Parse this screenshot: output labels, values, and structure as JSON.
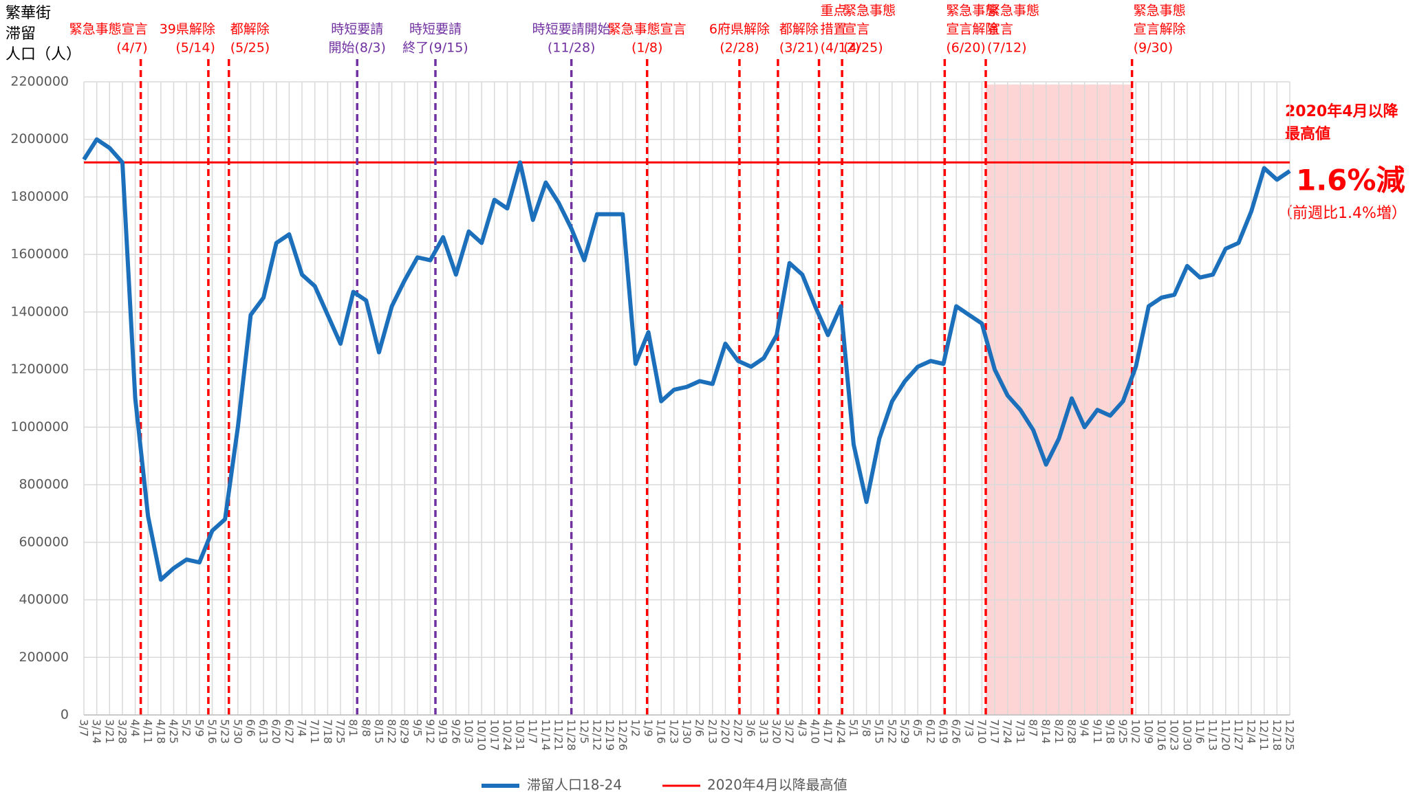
{
  "chart_data": {
    "type": "line",
    "y_axis_label": [
      "繁華街",
      "滞留",
      "人口（人）"
    ],
    "categories": [
      "3/7",
      "3/14",
      "3/21",
      "3/28",
      "4/4",
      "4/11",
      "4/18",
      "4/25",
      "5/2",
      "5/9",
      "5/16",
      "5/23",
      "5/30",
      "6/6",
      "6/13",
      "6/20",
      "6/27",
      "7/4",
      "7/11",
      "7/18",
      "7/25",
      "8/1",
      "8/8",
      "8/15",
      "8/22",
      "8/29",
      "9/5",
      "9/12",
      "9/19",
      "9/26",
      "10/3",
      "10/10",
      "10/17",
      "10/24",
      "10/31",
      "11/7",
      "11/14",
      "11/21",
      "11/28",
      "12/5",
      "12/12",
      "12/19",
      "12/26",
      "1/2",
      "1/9",
      "1/16",
      "1/23",
      "1/30",
      "2/6",
      "2/13",
      "2/20",
      "2/27",
      "3/6",
      "3/13",
      "3/20",
      "3/27",
      "4/3",
      "4/10",
      "4/17",
      "4/24",
      "5/1",
      "5/8",
      "5/15",
      "5/22",
      "5/29",
      "6/5",
      "6/12",
      "6/19",
      "6/26",
      "7/3",
      "7/10",
      "7/17",
      "7/24",
      "7/31",
      "8/7",
      "8/14",
      "8/21",
      "8/28",
      "9/4",
      "9/11",
      "9/18",
      "9/25",
      "10/2",
      "10/9",
      "10/16",
      "10/23",
      "10/30",
      "11/6",
      "11/13",
      "11/20",
      "11/27",
      "12/4",
      "12/11",
      "12/18",
      "12/25"
    ],
    "series": [
      {
        "name": "滞留人口18-24",
        "color": "#1b6fbb",
        "values": [
          1930000,
          2000000,
          1970000,
          1920000,
          1100000,
          690000,
          470000,
          510000,
          540000,
          530000,
          640000,
          680000,
          1000000,
          1390000,
          1450000,
          1640000,
          1670000,
          1530000,
          1490000,
          1390000,
          1290000,
          1470000,
          1440000,
          1260000,
          1420000,
          1510000,
          1590000,
          1580000,
          1660000,
          1530000,
          1680000,
          1640000,
          1790000,
          1760000,
          1920000,
          1720000,
          1850000,
          1780000,
          1690000,
          1580000,
          1740000,
          1740000,
          1740000,
          1220000,
          1330000,
          1090000,
          1130000,
          1140000,
          1160000,
          1150000,
          1290000,
          1230000,
          1210000,
          1240000,
          1320000,
          1570000,
          1530000,
          1420000,
          1320000,
          1420000,
          940000,
          740000,
          960000,
          1090000,
          1160000,
          1210000,
          1230000,
          1220000,
          1420000,
          1390000,
          1360000,
          1200000,
          1110000,
          1060000,
          990000,
          870000,
          960000,
          1100000,
          1000000,
          1060000,
          1040000,
          1090000,
          1210000,
          1420000,
          1450000,
          1460000,
          1560000,
          1520000,
          1530000,
          1620000,
          1640000,
          1750000,
          1900000,
          1860000,
          1890000
        ]
      }
    ],
    "reference": {
      "name": "2020年4月以降最高値",
      "value": 1920000,
      "color": "#ff0000"
    },
    "ylim": [
      0,
      2200000
    ],
    "yticks": [
      0,
      200000,
      400000,
      600000,
      800000,
      1000000,
      1200000,
      1400000,
      1600000,
      1800000,
      2000000,
      2200000
    ],
    "grid": true,
    "events": [
      {
        "lines": [
          "緊急事態宣言",
          "(4/7)"
        ],
        "x": 4.43,
        "color": "#ff0000",
        "anchor": "end"
      },
      {
        "lines": [
          "39県解除",
          "(5/14)"
        ],
        "x": 9.7,
        "color": "#ff0000",
        "anchor": "end"
      },
      {
        "lines": [
          "都解除",
          "(5/25)"
        ],
        "x": 11.3,
        "color": "#ff0000",
        "anchor": "start"
      },
      {
        "lines": [
          "時短要請",
          "開始(8/3)"
        ],
        "x": 21.3,
        "color": "#7030a0",
        "anchor": "middle"
      },
      {
        "lines": [
          "時短要請",
          "終了(9/15)"
        ],
        "x": 27.4,
        "color": "#7030a0",
        "anchor": "middle"
      },
      {
        "lines": [
          "時短要請開始",
          "(11/28)"
        ],
        "x": 38,
        "color": "#7030a0",
        "anchor": "middle"
      },
      {
        "lines": [
          "緊急事態宣言",
          "(1/8)"
        ],
        "x": 43.9,
        "color": "#ff0000",
        "anchor": "middle"
      },
      {
        "lines": [
          "6府県解除",
          "(2/28)"
        ],
        "x": 51.1,
        "color": "#ff0000",
        "anchor": "middle"
      },
      {
        "lines": [
          "都解除",
          "(3/21)"
        ],
        "x": 54.1,
        "color": "#ff0000",
        "anchor": "start"
      },
      {
        "lines": [
          "重点",
          "措置",
          "(4/12)"
        ],
        "x": 57.3,
        "color": "#ff0000",
        "anchor": "start"
      },
      {
        "lines": [
          "緊急事態",
          "宣言",
          "(4/25)"
        ],
        "x": 59.1,
        "color": "#ff0000",
        "anchor": "start"
      },
      {
        "lines": [
          "緊急事態",
          "宣言解除",
          "(6/20)"
        ],
        "x": 67.1,
        "color": "#ff0000",
        "anchor": "start"
      },
      {
        "lines": [
          "緊急事態",
          "宣言",
          "(7/12)"
        ],
        "x": 70.3,
        "color": "#ff0000",
        "anchor": "start"
      },
      {
        "lines": [
          "緊急事態",
          "宣言解除",
          "(9/30)"
        ],
        "x": 81.7,
        "color": "#ff0000",
        "anchor": "start"
      }
    ],
    "shade": {
      "from": 70.3,
      "to": 81.7,
      "color": "#fdd5d5"
    },
    "annotations": {
      "reference_label": [
        "2020年4月以降",
        "最高値"
      ],
      "change": "1.6%減",
      "change_note": "（前週比1.4%増）"
    }
  }
}
